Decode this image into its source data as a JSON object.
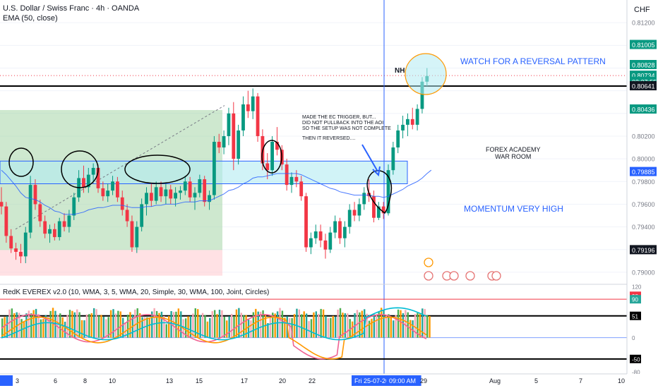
{
  "header": {
    "symbol_line": "U.S. Dollar / Swiss Franc · 4h · OANDA",
    "indicator_line": "EMA (50, close)",
    "currency": "CHF",
    "sub_indicator": "RedK EVEREX v2.0 (10, WMA, 3, 5, WMA, 20, Simple, 30, WMA, 100, Joint, Circles)"
  },
  "colors": {
    "up": "#089981",
    "down": "#f23645",
    "ema": "#2962ff",
    "zone": "#b2ebf2",
    "long_zone": "#a5d6a7",
    "stop_zone": "#ffcdd2",
    "annot_blue": "#2962ff",
    "green_label": "#089981",
    "hist_green": "#4caf50",
    "hist_orange": "#ff9800",
    "hist_teal": "#26a69a",
    "hist_pink": "#f7a9b5",
    "osc_pink": "#f06292",
    "osc_orange": "#ff9800",
    "osc_teal": "#00bcd4"
  },
  "annotations": {
    "watch": "WATCH FOR A REVERSAL PATTERN",
    "nh": "NH",
    "ec_line1": "MADE THE EC TRIGGER, BUT...",
    "ec_line2": "DID NOT PULLBACK INTO THE AOI",
    "ec_line3": "SO THE SETUP WAS NOT COMPLETE",
    "ec_line4": "THEN IT REVERSED....",
    "academy_line1": "FOREX ACADEMY",
    "academy_line2": "WAR ROOM",
    "momentum": "MOMENTUM VERY HIGH"
  },
  "chart_data": [
    {
      "type": "candlestick",
      "title": "U.S. Dollar / Swiss Franc · 4h · OANDA",
      "ylabel": "CHF",
      "ylim": [
        0.789,
        0.814
      ],
      "yticks": [
        "0.81200",
        "0.81005",
        "0.80828",
        "0.80734",
        "03:27:55",
        "0.80641",
        "0.80436",
        "0.80200",
        "0.80000",
        "0.79885",
        "0.79800",
        "0.79600",
        "0.79400",
        "0.79196",
        "0.79000"
      ],
      "ticks_values": [
        0.812,
        0.81005,
        0.80828,
        0.80734,
        null,
        0.80641,
        0.80436,
        0.802,
        0.8,
        0.79885,
        0.798,
        0.796,
        0.794,
        0.79196,
        0.79
      ],
      "highlight_labels": [
        {
          "label": "0.81005",
          "value": 0.81005,
          "color": "#089981"
        },
        {
          "label": "0.80828",
          "value": 0.80828,
          "color": "#089981"
        },
        {
          "label": "0.80734",
          "value": 0.80734,
          "color": "#089981"
        },
        {
          "label": "03:27:55",
          "value": 0.8068,
          "color": "#089981"
        },
        {
          "label": "0.80641",
          "value": 0.80641,
          "color": "#131722"
        },
        {
          "label": "0.80436",
          "value": 0.80436,
          "color": "#089981"
        },
        {
          "label": "0.79885",
          "value": 0.79885,
          "color": "#2962ff"
        },
        {
          "label": "0.79196",
          "value": 0.79196,
          "color": "#131722"
        }
      ],
      "x_labels": [
        "3",
        "6",
        "8",
        "10",
        "13",
        "15",
        "17",
        "20",
        "22",
        "Fri 25-07-2025",
        "09:00 AM",
        "29",
        "Aug",
        "5",
        "7",
        "10"
      ],
      "candles": [
        {
          "o": 0.7962,
          "h": 0.7975,
          "l": 0.7951,
          "c": 0.7958
        },
        {
          "o": 0.7958,
          "h": 0.7962,
          "l": 0.7926,
          "c": 0.7932
        },
        {
          "o": 0.7932,
          "h": 0.7938,
          "l": 0.7917,
          "c": 0.7921
        },
        {
          "o": 0.7921,
          "h": 0.7926,
          "l": 0.7911,
          "c": 0.7918
        },
        {
          "o": 0.7918,
          "h": 0.7925,
          "l": 0.7908,
          "c": 0.7914
        },
        {
          "o": 0.7914,
          "h": 0.794,
          "l": 0.7908,
          "c": 0.7935
        },
        {
          "o": 0.7935,
          "h": 0.7985,
          "l": 0.793,
          "c": 0.7977
        },
        {
          "o": 0.7977,
          "h": 0.7982,
          "l": 0.7955,
          "c": 0.796
        },
        {
          "o": 0.796,
          "h": 0.7964,
          "l": 0.794,
          "c": 0.7945
        },
        {
          "o": 0.7945,
          "h": 0.795,
          "l": 0.793,
          "c": 0.7934
        },
        {
          "o": 0.7934,
          "h": 0.7942,
          "l": 0.7926,
          "c": 0.7938
        },
        {
          "o": 0.7938,
          "h": 0.7943,
          "l": 0.7928,
          "c": 0.7931
        },
        {
          "o": 0.7931,
          "h": 0.7948,
          "l": 0.7928,
          "c": 0.7945
        },
        {
          "o": 0.7945,
          "h": 0.7952,
          "l": 0.7936,
          "c": 0.794
        },
        {
          "o": 0.794,
          "h": 0.7955,
          "l": 0.7935,
          "c": 0.795
        },
        {
          "o": 0.795,
          "h": 0.797,
          "l": 0.7946,
          "c": 0.7966
        },
        {
          "o": 0.7966,
          "h": 0.799,
          "l": 0.7962,
          "c": 0.7983
        },
        {
          "o": 0.7983,
          "h": 0.7994,
          "l": 0.797,
          "c": 0.7975
        },
        {
          "o": 0.7975,
          "h": 0.7992,
          "l": 0.797,
          "c": 0.7986
        },
        {
          "o": 0.7986,
          "h": 0.7996,
          "l": 0.798,
          "c": 0.7992
        },
        {
          "o": 0.7992,
          "h": 0.7995,
          "l": 0.797,
          "c": 0.7974
        },
        {
          "o": 0.7974,
          "h": 0.798,
          "l": 0.7963,
          "c": 0.7967
        },
        {
          "o": 0.7967,
          "h": 0.7978,
          "l": 0.7962,
          "c": 0.7972
        },
        {
          "o": 0.7972,
          "h": 0.7985,
          "l": 0.7968,
          "c": 0.798
        },
        {
          "o": 0.798,
          "h": 0.7984,
          "l": 0.7962,
          "c": 0.7966
        },
        {
          "o": 0.7966,
          "h": 0.7972,
          "l": 0.795,
          "c": 0.7955
        },
        {
          "o": 0.7955,
          "h": 0.796,
          "l": 0.794,
          "c": 0.7945
        },
        {
          "o": 0.7945,
          "h": 0.795,
          "l": 0.7918,
          "c": 0.7922
        },
        {
          "o": 0.7922,
          "h": 0.7945,
          "l": 0.7917,
          "c": 0.794
        },
        {
          "o": 0.794,
          "h": 0.7965,
          "l": 0.7936,
          "c": 0.796
        },
        {
          "o": 0.796,
          "h": 0.7975,
          "l": 0.795,
          "c": 0.797
        },
        {
          "o": 0.797,
          "h": 0.7978,
          "l": 0.7958,
          "c": 0.7963
        },
        {
          "o": 0.7963,
          "h": 0.798,
          "l": 0.796,
          "c": 0.7975
        },
        {
          "o": 0.7975,
          "h": 0.798,
          "l": 0.7962,
          "c": 0.7967
        },
        {
          "o": 0.7967,
          "h": 0.7978,
          "l": 0.796,
          "c": 0.7973
        },
        {
          "o": 0.7973,
          "h": 0.7977,
          "l": 0.796,
          "c": 0.7965
        },
        {
          "o": 0.7965,
          "h": 0.7975,
          "l": 0.7958,
          "c": 0.797
        },
        {
          "o": 0.797,
          "h": 0.7976,
          "l": 0.7964,
          "c": 0.7972
        },
        {
          "o": 0.7972,
          "h": 0.7985,
          "l": 0.7968,
          "c": 0.798
        },
        {
          "o": 0.798,
          "h": 0.7984,
          "l": 0.7962,
          "c": 0.7966
        },
        {
          "o": 0.7966,
          "h": 0.7975,
          "l": 0.7955,
          "c": 0.797
        },
        {
          "o": 0.797,
          "h": 0.7986,
          "l": 0.7966,
          "c": 0.7982
        },
        {
          "o": 0.7982,
          "h": 0.7985,
          "l": 0.7958,
          "c": 0.7962
        },
        {
          "o": 0.7962,
          "h": 0.7972,
          "l": 0.7955,
          "c": 0.7968
        },
        {
          "o": 0.7968,
          "h": 0.802,
          "l": 0.7964,
          "c": 0.8015
        },
        {
          "o": 0.8015,
          "h": 0.8022,
          "l": 0.8005,
          "c": 0.801
        },
        {
          "o": 0.801,
          "h": 0.8025,
          "l": 0.8004,
          "c": 0.802
        },
        {
          "o": 0.802,
          "h": 0.8045,
          "l": 0.8012,
          "c": 0.804
        },
        {
          "o": 0.804,
          "h": 0.805,
          "l": 0.799,
          "c": 0.8
        },
        {
          "o": 0.8,
          "h": 0.803,
          "l": 0.7995,
          "c": 0.8025
        },
        {
          "o": 0.8025,
          "h": 0.8055,
          "l": 0.802,
          "c": 0.8048
        },
        {
          "o": 0.8048,
          "h": 0.806,
          "l": 0.8036,
          "c": 0.8042
        },
        {
          "o": 0.8042,
          "h": 0.8062,
          "l": 0.8035,
          "c": 0.8055
        },
        {
          "o": 0.8055,
          "h": 0.8058,
          "l": 0.8015,
          "c": 0.802
        },
        {
          "o": 0.802,
          "h": 0.8026,
          "l": 0.799,
          "c": 0.7996
        },
        {
          "o": 0.7996,
          "h": 0.8005,
          "l": 0.7982,
          "c": 0.799
        },
        {
          "o": 0.799,
          "h": 0.802,
          "l": 0.7985,
          "c": 0.8015
        },
        {
          "o": 0.8015,
          "h": 0.8028,
          "l": 0.8003,
          "c": 0.8008
        },
        {
          "o": 0.8008,
          "h": 0.8012,
          "l": 0.799,
          "c": 0.7995
        },
        {
          "o": 0.7995,
          "h": 0.8,
          "l": 0.7972,
          "c": 0.7977
        },
        {
          "o": 0.7977,
          "h": 0.7988,
          "l": 0.797,
          "c": 0.7984
        },
        {
          "o": 0.7984,
          "h": 0.799,
          "l": 0.7975,
          "c": 0.798
        },
        {
          "o": 0.798,
          "h": 0.7985,
          "l": 0.7963,
          "c": 0.7967
        },
        {
          "o": 0.7967,
          "h": 0.797,
          "l": 0.7918,
          "c": 0.7922
        },
        {
          "o": 0.7922,
          "h": 0.7935,
          "l": 0.7916,
          "c": 0.793
        },
        {
          "o": 0.793,
          "h": 0.7942,
          "l": 0.7925,
          "c": 0.7936
        },
        {
          "o": 0.7936,
          "h": 0.7942,
          "l": 0.7922,
          "c": 0.7928
        },
        {
          "o": 0.7928,
          "h": 0.7934,
          "l": 0.7912,
          "c": 0.792
        },
        {
          "o": 0.792,
          "h": 0.794,
          "l": 0.7917,
          "c": 0.7935
        },
        {
          "o": 0.7935,
          "h": 0.795,
          "l": 0.793,
          "c": 0.7945
        },
        {
          "o": 0.7945,
          "h": 0.7948,
          "l": 0.7925,
          "c": 0.793
        },
        {
          "o": 0.793,
          "h": 0.7945,
          "l": 0.7922,
          "c": 0.794
        },
        {
          "o": 0.794,
          "h": 0.796,
          "l": 0.7934,
          "c": 0.7955
        },
        {
          "o": 0.7955,
          "h": 0.7962,
          "l": 0.7945,
          "c": 0.795
        },
        {
          "o": 0.795,
          "h": 0.7965,
          "l": 0.7945,
          "c": 0.796
        },
        {
          "o": 0.796,
          "h": 0.7975,
          "l": 0.7955,
          "c": 0.797
        },
        {
          "o": 0.797,
          "h": 0.7982,
          "l": 0.7962,
          "c": 0.7967
        },
        {
          "o": 0.7967,
          "h": 0.7972,
          "l": 0.7944,
          "c": 0.7948
        },
        {
          "o": 0.7948,
          "h": 0.7962,
          "l": 0.7946,
          "c": 0.7958
        },
        {
          "o": 0.7958,
          "h": 0.7962,
          "l": 0.7947,
          "c": 0.7952
        },
        {
          "o": 0.7952,
          "h": 0.7995,
          "l": 0.795,
          "c": 0.799
        },
        {
          "o": 0.799,
          "h": 0.8015,
          "l": 0.7986,
          "c": 0.801
        },
        {
          "o": 0.801,
          "h": 0.803,
          "l": 0.8005,
          "c": 0.8025
        },
        {
          "o": 0.8025,
          "h": 0.8038,
          "l": 0.8018,
          "c": 0.803
        },
        {
          "o": 0.803,
          "h": 0.804,
          "l": 0.802,
          "c": 0.8035
        },
        {
          "o": 0.8035,
          "h": 0.8045,
          "l": 0.8026,
          "c": 0.803
        },
        {
          "o": 0.803,
          "h": 0.8048,
          "l": 0.8025,
          "c": 0.8044
        },
        {
          "o": 0.8044,
          "h": 0.8072,
          "l": 0.804,
          "c": 0.8068
        },
        {
          "o": 0.8068,
          "h": 0.808,
          "l": 0.8064,
          "c": 0.8073
        }
      ],
      "ema": [
        0.799,
        0.7986,
        0.7981,
        0.7976,
        0.797,
        0.7966,
        0.7965,
        0.7964,
        0.7962,
        0.7959,
        0.7957,
        0.7954,
        0.7953,
        0.7951,
        0.7951,
        0.7951,
        0.7952,
        0.7953,
        0.7955,
        0.7956,
        0.7957,
        0.7957,
        0.7958,
        0.7959,
        0.7959,
        0.7959,
        0.7958,
        0.7957,
        0.7957,
        0.7957,
        0.7958,
        0.7958,
        0.7959,
        0.7959,
        0.796,
        0.796,
        0.796,
        0.7961,
        0.7962,
        0.7962,
        0.7962,
        0.7963,
        0.7963,
        0.7963,
        0.7965,
        0.7967,
        0.7969,
        0.7972,
        0.7973,
        0.7975,
        0.7978,
        0.798,
        0.7983,
        0.7984,
        0.7984,
        0.7985,
        0.7986,
        0.7987,
        0.7987,
        0.7987,
        0.7987,
        0.7987,
        0.7986,
        0.7984,
        0.7982,
        0.798,
        0.7978,
        0.7976,
        0.7974,
        0.7973,
        0.7971,
        0.797,
        0.7969,
        0.7968,
        0.7968,
        0.7968,
        0.7968,
        0.7967,
        0.7967,
        0.7966,
        0.7967,
        0.7969,
        0.7971,
        0.7973,
        0.7976,
        0.7978,
        0.798,
        0.7983,
        0.7987
      ]
    },
    {
      "type": "bar",
      "title": "RedK EVEREX v2.0 (10, WMA, 3, 5, WMA, 20, Simple, 30, WMA, 100, Joint, Circles)",
      "ylim": [
        -85,
        125
      ],
      "yticks": [
        "120",
        "98",
        "90",
        "51",
        "0",
        "-50",
        "-80"
      ],
      "ticks_values": [
        120,
        98,
        90,
        51,
        0,
        -50,
        -80
      ],
      "levels": [
        98,
        90,
        51,
        0,
        -50
      ]
    }
  ]
}
